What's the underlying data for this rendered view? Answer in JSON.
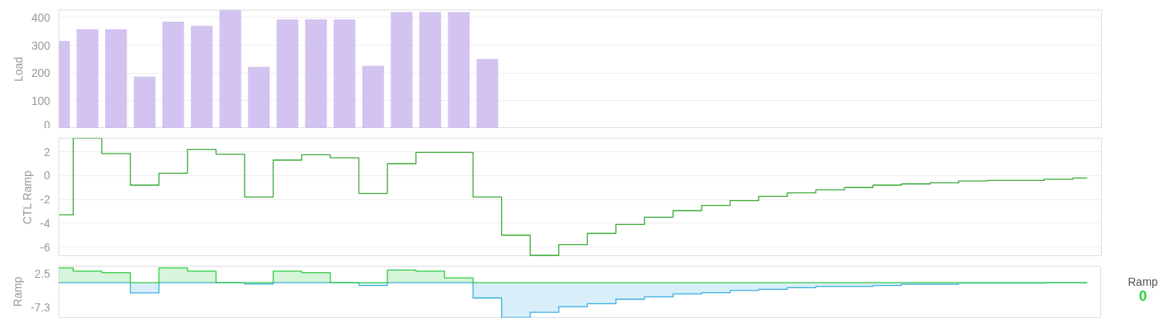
{
  "chart_data": [
    {
      "type": "bar",
      "ylabel": "Load",
      "categories": [
        null,
        null,
        null,
        null,
        null,
        null,
        null,
        null,
        null,
        null,
        null,
        null,
        null,
        null,
        null,
        null,
        null,
        null,
        null,
        null,
        null,
        null,
        null,
        null,
        null,
        null,
        null,
        null,
        null,
        null,
        null,
        null,
        null,
        null,
        null,
        null,
        null
      ],
      "values": [
        315,
        358,
        358,
        187,
        385,
        370,
        427,
        222,
        393,
        393,
        393,
        226,
        420,
        420,
        420,
        250,
        null,
        null,
        null,
        null,
        null,
        null,
        null,
        null,
        null,
        null,
        null,
        null,
        null,
        null,
        null,
        null,
        null,
        null,
        null,
        null,
        null
      ],
      "color": "#cdbdee",
      "ylim": [
        0,
        427
      ],
      "yticks": [
        0,
        100,
        200,
        300,
        400
      ],
      "grid": "y"
    },
    {
      "type": "step",
      "ylabel": "CTL Ramp",
      "categories": [
        null,
        null,
        null,
        null,
        null,
        null,
        null,
        null,
        null,
        null,
        null,
        null,
        null,
        null,
        null,
        null,
        null,
        null,
        null,
        null,
        null,
        null,
        null,
        null,
        null,
        null,
        null,
        null,
        null,
        null,
        null,
        null,
        null,
        null,
        null,
        null,
        null
      ],
      "series": [
        {
          "color": "#3aaa35",
          "values": [
            -3.3,
            3.15,
            1.85,
            -0.8,
            0.2,
            2.2,
            1.8,
            -1.8,
            1.3,
            1.75,
            1.5,
            -1.5,
            1.0,
            1.95,
            1.95,
            -1.8,
            -5.0,
            -6.7,
            -5.8,
            -4.85,
            -4.1,
            -3.5,
            -2.95,
            -2.5,
            -2.1,
            -1.75,
            -1.45,
            -1.2,
            -1.0,
            -0.8,
            -0.7,
            -0.6,
            -0.45,
            -0.4,
            -0.4,
            -0.3,
            -0.2
          ]
        }
      ],
      "ylim": [
        -6.8,
        3.15
      ],
      "yticks": [
        -6,
        -4,
        -2,
        0,
        2
      ],
      "grid": "y"
    },
    {
      "type": "area",
      "ylabel": "Ramp",
      "categories": [
        null,
        null,
        null,
        null,
        null,
        null,
        null,
        null,
        null,
        null,
        null,
        null,
        null,
        null,
        null,
        null,
        null,
        null,
        null,
        null,
        null,
        null,
        null,
        null,
        null,
        null,
        null,
        null,
        null,
        null,
        null,
        null,
        null,
        null,
        null,
        null,
        null
      ],
      "series": [
        {
          "color": "#33cc44",
          "values": [
            4.3,
            3.36,
            2.9,
            0,
            4.3,
            3.36,
            0,
            0,
            3.36,
            2.9,
            0,
            0,
            3.66,
            3.36,
            1.4,
            0,
            0,
            0,
            0,
            0,
            0,
            0,
            0,
            0,
            0,
            0,
            0,
            0,
            0,
            0,
            0,
            0,
            0,
            0,
            0,
            0,
            0
          ]
        },
        {
          "color": "#3aaee0",
          "values": [
            0,
            0,
            0,
            -2.95,
            0,
            0,
            0,
            -0.4,
            0,
            0,
            0,
            -0.8,
            0,
            0,
            0,
            -4.45,
            -10.1,
            -8.6,
            -7.0,
            -6.1,
            -4.8,
            -4.15,
            -3.25,
            -2.9,
            -2.25,
            -1.9,
            -1.45,
            -1.1,
            -1.1,
            -0.8,
            -0.45,
            -0.45,
            -0.1,
            -0.1,
            -0.1,
            -0.05,
            -0.05
          ]
        }
      ],
      "ylim": [
        -10.1,
        4.8
      ],
      "yticks": [
        2.5,
        -7.3
      ],
      "grid": false,
      "annotations": [
        "Ramp",
        "0"
      ]
    }
  ]
}
